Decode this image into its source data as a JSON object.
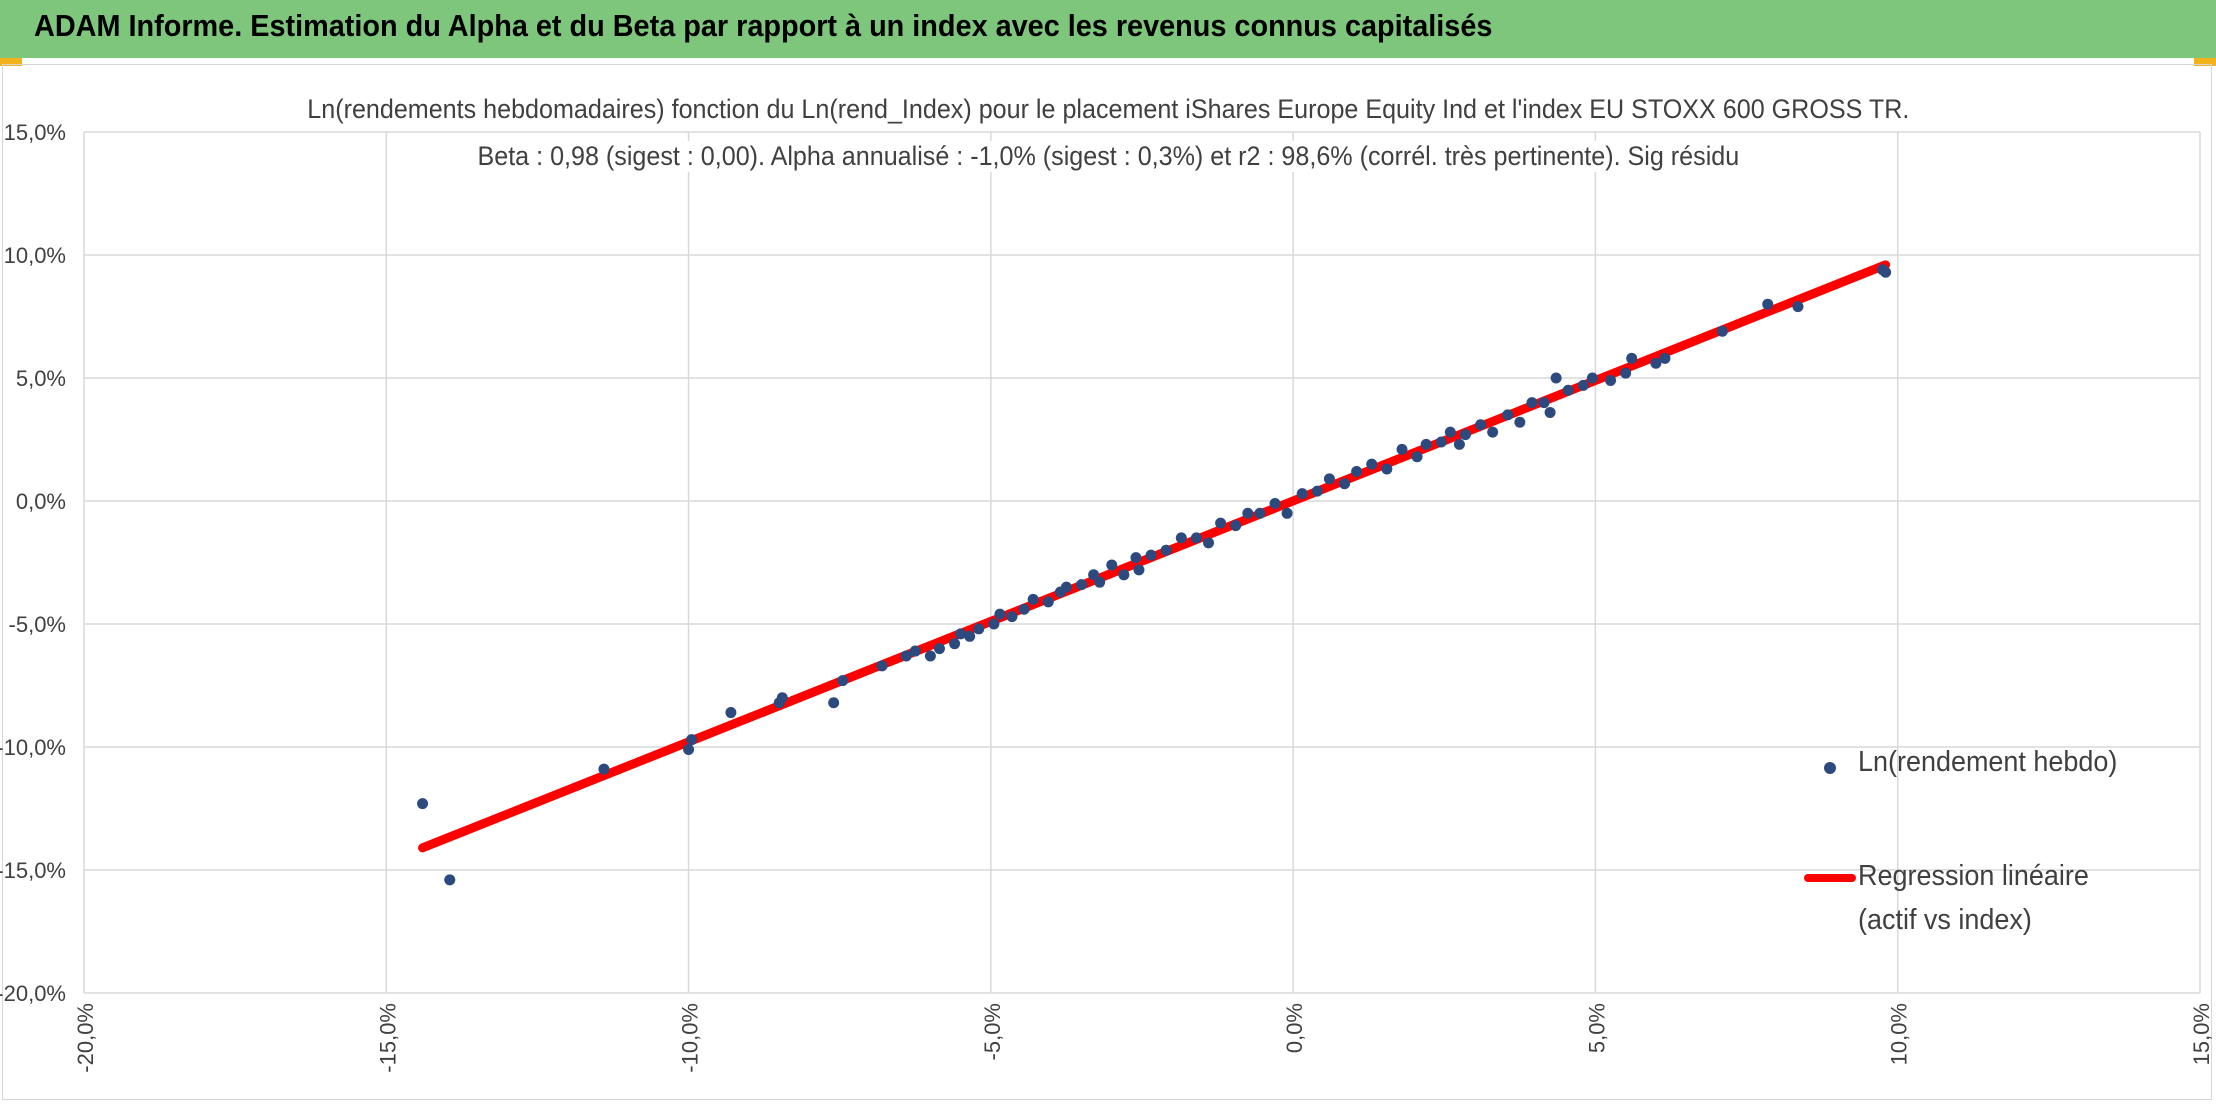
{
  "banner": {
    "title": "ADAM Informe. Estimation du Alpha et du Beta par rapport à un index avec les revenus connus capitalisés"
  },
  "colors": {
    "banner": "#7dc67c",
    "corner_accent": "#f2b21c",
    "points": "#2c4a7e",
    "regression": "#ff0000",
    "grid": "#d9d9d9",
    "text": "#404040"
  },
  "chart_data": {
    "type": "scatter",
    "title": "Ln(rendements hebdomadaires) fonction du Ln(rend_Index) pour le placement iShares Europe Equity Ind et l'index EU STOXX 600 GROSS TR.",
    "subtitle": "Beta : 0,98 (sigest : 0,00). Alpha annualisé : -1,0% (sigest : 0,3%) et r2 : 98,6% (corrél. très pertinente). Sig résidu",
    "xlabel": "",
    "ylabel": "",
    "xlim": [
      -20,
      15
    ],
    "ylim": [
      -20,
      15
    ],
    "x_ticks": [
      "-20,0%",
      "-15,0%",
      "-10,0%",
      "-5,0%",
      "0,0%",
      "5,0%",
      "10,0%",
      "15,0%"
    ],
    "y_ticks": [
      "15,0%",
      "10,0%",
      "5,0%",
      "0,0%",
      "-5,0%",
      "-10,0%",
      "-15,0%",
      "-20,0%"
    ],
    "grid": true,
    "legend_position": "right",
    "series": [
      {
        "name": "Ln(rendement hebdo)",
        "kind": "points",
        "x": [
          -14.4,
          -13.95,
          -11.4,
          -10.0,
          -9.95,
          -9.3,
          -8.5,
          -8.45,
          -7.6,
          -7.45,
          -6.8,
          -6.4,
          -6.25,
          -6.0,
          -5.85,
          -5.6,
          -5.5,
          -5.35,
          -5.2,
          -4.95,
          -4.85,
          -4.65,
          -4.45,
          -4.3,
          -4.05,
          -3.85,
          -3.75,
          -3.5,
          -3.3,
          -3.2,
          -3.0,
          -2.8,
          -2.6,
          -2.55,
          -2.35,
          -2.1,
          -1.85,
          -1.6,
          -1.4,
          -1.2,
          -0.95,
          -0.75,
          -0.55,
          -0.3,
          -0.1,
          0.15,
          0.4,
          0.6,
          0.85,
          1.05,
          1.3,
          1.55,
          1.8,
          2.05,
          2.2,
          2.45,
          2.6,
          2.75,
          2.85,
          3.1,
          3.3,
          3.55,
          3.75,
          3.95,
          4.15,
          4.25,
          4.35,
          4.55,
          4.8,
          4.95,
          5.25,
          5.5,
          5.6,
          6.0,
          6.15,
          7.1,
          7.85,
          8.35,
          9.75,
          9.8
        ],
        "y": [
          -12.3,
          -15.4,
          -10.9,
          -10.1,
          -9.7,
          -8.6,
          -8.2,
          -8.0,
          -8.2,
          -7.3,
          -6.7,
          -6.3,
          -6.1,
          -6.3,
          -6.0,
          -5.8,
          -5.4,
          -5.5,
          -5.2,
          -5.0,
          -4.6,
          -4.7,
          -4.4,
          -4.0,
          -4.1,
          -3.7,
          -3.5,
          -3.4,
          -3.0,
          -3.3,
          -2.6,
          -3.0,
          -2.3,
          -2.8,
          -2.2,
          -2.0,
          -1.5,
          -1.5,
          -1.7,
          -0.9,
          -1.0,
          -0.5,
          -0.5,
          -0.1,
          -0.5,
          0.3,
          0.4,
          0.9,
          0.7,
          1.2,
          1.5,
          1.3,
          2.1,
          1.8,
          2.3,
          2.4,
          2.8,
          2.3,
          2.7,
          3.1,
          2.8,
          3.5,
          3.2,
          4.0,
          4.0,
          3.6,
          5.0,
          4.5,
          4.7,
          5.0,
          4.9,
          5.2,
          5.8,
          5.6,
          5.8,
          6.9,
          8.0,
          7.9,
          9.4,
          9.3
        ]
      },
      {
        "name": "Regression linéaire (actif vs index)",
        "kind": "line",
        "x": [
          -14.4,
          9.8
        ],
        "y": [
          -14.1,
          9.6
        ]
      }
    ]
  },
  "legend": {
    "points_label": "Ln(rendement hebdo)",
    "line_label": "Regression linéaire (actif vs index)"
  }
}
